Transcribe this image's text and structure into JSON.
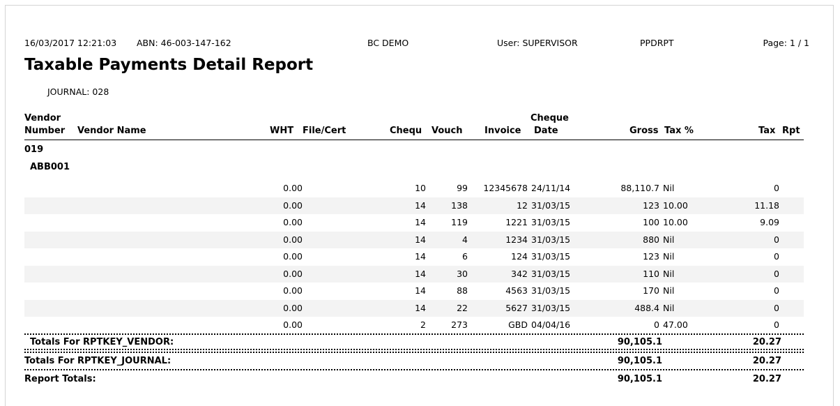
{
  "header": {
    "datetime": "16/03/2017 12:21:03",
    "abn": "ABN: 46-003-147-162",
    "company": "BC DEMO",
    "user": "User: SUPERVISOR",
    "report_code": "PPDRPT",
    "page": "Page: 1 / 1"
  },
  "report": {
    "title": "Taxable Payments Detail Report",
    "journal": "JOURNAL: 028"
  },
  "columns": {
    "vendor_number_1": "Vendor",
    "vendor_number_2": "Number",
    "vendor_name": "Vendor Name",
    "wht": "WHT",
    "file_cert": "File/Cert",
    "chequ": "Chequ",
    "vouch": "Vouch",
    "invoice": "Invoice",
    "cheque_date_1": "Cheque",
    "cheque_date_2": "Date",
    "gross": "Gross",
    "tax_pct": "Tax %",
    "tax": "Tax",
    "rpt": "Rpt"
  },
  "group": {
    "journal_code": "019",
    "vendor_code": "ABB001"
  },
  "rows": [
    {
      "wht": "0.00",
      "chequ": "10",
      "vouch": "99",
      "invoice": "12345678",
      "date": "24/11/14",
      "gross": "88,110.7",
      "tax_pct": "Nil",
      "tax": "0"
    },
    {
      "wht": "0.00",
      "chequ": "14",
      "vouch": "138",
      "invoice": "12",
      "date": "31/03/15",
      "gross": "123",
      "tax_pct": "10.00",
      "tax": "11.18"
    },
    {
      "wht": "0.00",
      "chequ": "14",
      "vouch": "119",
      "invoice": "1221",
      "date": "31/03/15",
      "gross": "100",
      "tax_pct": "10.00",
      "tax": "9.09"
    },
    {
      "wht": "0.00",
      "chequ": "14",
      "vouch": "4",
      "invoice": "1234",
      "date": "31/03/15",
      "gross": "880",
      "tax_pct": "Nil",
      "tax": "0"
    },
    {
      "wht": "0.00",
      "chequ": "14",
      "vouch": "6",
      "invoice": "124",
      "date": "31/03/15",
      "gross": "123",
      "tax_pct": "Nil",
      "tax": "0"
    },
    {
      "wht": "0.00",
      "chequ": "14",
      "vouch": "30",
      "invoice": "342",
      "date": "31/03/15",
      "gross": "110",
      "tax_pct": "Nil",
      "tax": "0"
    },
    {
      "wht": "0.00",
      "chequ": "14",
      "vouch": "88",
      "invoice": "4563",
      "date": "31/03/15",
      "gross": "170",
      "tax_pct": "Nil",
      "tax": "0"
    },
    {
      "wht": "0.00",
      "chequ": "14",
      "vouch": "22",
      "invoice": "5627",
      "date": "31/03/15",
      "gross": "488.4",
      "tax_pct": "Nil",
      "tax": "0"
    },
    {
      "wht": "0.00",
      "chequ": "2",
      "vouch": "273",
      "invoice": "GBD",
      "date": "04/04/16",
      "gross": "0",
      "tax_pct": "47.00",
      "tax": "0"
    }
  ],
  "totals": {
    "vendor": {
      "label": "Totals For RPTKEY_VENDOR:",
      "gross": "90,105.1",
      "tax": "20.27"
    },
    "journal": {
      "label": "Totals For RPTKEY_JOURNAL:",
      "gross": "90,105.1",
      "tax": "20.27"
    },
    "report": {
      "label": "Report Totals:",
      "gross": "90,105.1",
      "tax": "20.27"
    }
  }
}
